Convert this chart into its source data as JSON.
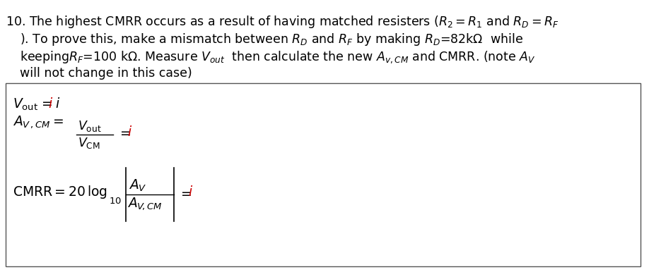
{
  "bg_color": "#ffffff",
  "text_color": "#000000",
  "red_color": "#cc0000",
  "box_border_color": "#555555",
  "font_size_body": 12.5,
  "font_size_box": 13.5,
  "fig_width": 9.18,
  "fig_height": 3.86,
  "dpi": 100
}
